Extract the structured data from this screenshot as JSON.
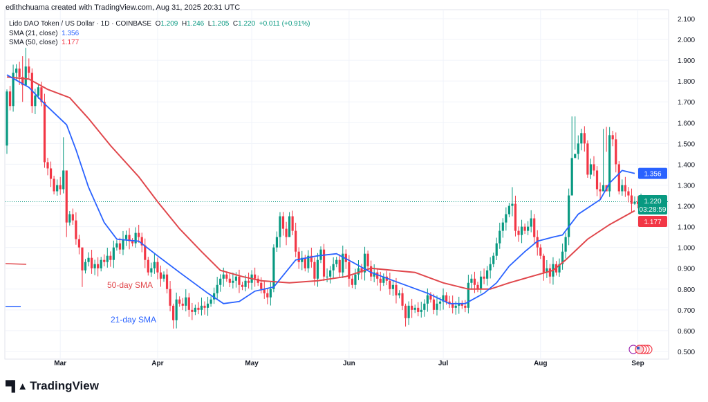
{
  "header": {
    "credit": "edithchuama created with TradingView.com, Aug 31, 2025 20:31 UTC",
    "symbol": "Lido DAO Token / US Dollar · 1D · COINBASE",
    "o_label": "O",
    "o": "1.209",
    "h_label": "H",
    "h": "1.246",
    "l_label": "L",
    "l": "1.205",
    "c_label": "C",
    "c": "1.220",
    "change": "+0.011 (+0.91%)",
    "sma21_label": "SMA (21, close)",
    "sma21_value": "1.356",
    "sma50_label": "SMA (50, close)",
    "sma50_value": "1.177"
  },
  "price_tags": {
    "sma21": "1.356",
    "last": "1.220",
    "countdown": "03:28:59",
    "sma50": "1.177"
  },
  "logo": {
    "text": "TradingView"
  },
  "colors": {
    "up": "#089981",
    "down": "#f23645",
    "sma21": "#2962ff",
    "sma50": "#e0474c",
    "grid": "#f0f3fa"
  },
  "chart_data": {
    "type": "candlestick",
    "title": "Lido DAO Token / US Dollar · 1D · COINBASE",
    "first_date": "2025-02-12",
    "last_date": "2025-08-31",
    "ylim": [
      0.46,
      2.13
    ],
    "y_ticks": [
      "2.100",
      "2.000",
      "1.900",
      "1.800",
      "1.700",
      "1.600",
      "1.500",
      "1.400",
      "1.300",
      "1.200",
      "1.100",
      "1.000",
      "0.900",
      "0.800",
      "0.700",
      "0.600",
      "0.500"
    ],
    "x_ticks": [
      {
        "label": "Mar",
        "day": 17
      },
      {
        "label": "Apr",
        "day": 48
      },
      {
        "label": "May",
        "day": 78
      },
      {
        "label": "Jun",
        "day": 109
      },
      {
        "label": "Jul",
        "day": 139
      },
      {
        "label": "Aug",
        "day": 170
      },
      {
        "label": "Sep",
        "day": 201
      }
    ],
    "first_open": 1.49,
    "closes": [
      1.75,
      1.68,
      1.84,
      1.86,
      1.82,
      1.78,
      1.87,
      1.84,
      1.68,
      1.73,
      1.77,
      1.7,
      1.41,
      1.38,
      1.33,
      1.27,
      1.3,
      1.28,
      1.37,
      1.12,
      1.16,
      1.13,
      1.04,
      1.0,
      0.89,
      0.93,
      0.95,
      0.9,
      0.92,
      0.9,
      0.94,
      0.93,
      0.96,
      0.94,
      1.0,
      1.02,
      0.99,
      1.04,
      1.06,
      1.03,
      1.02,
      1.07,
      1.05,
      1.01,
      0.94,
      0.88,
      0.9,
      0.93,
      0.88,
      0.85,
      0.87,
      0.8,
      0.72,
      0.65,
      0.75,
      0.73,
      0.72,
      0.76,
      0.7,
      0.69,
      0.71,
      0.7,
      0.72,
      0.71,
      0.73,
      0.75,
      0.78,
      0.82,
      0.85,
      0.87,
      0.85,
      0.83,
      0.84,
      0.86,
      0.82,
      0.81,
      0.84,
      0.83,
      0.87,
      0.85,
      0.83,
      0.8,
      0.78,
      0.76,
      0.8,
      1.0,
      1.05,
      1.15,
      1.09,
      1.05,
      1.15,
      1.08,
      0.98,
      0.93,
      0.95,
      0.9,
      0.96,
      0.93,
      0.85,
      0.94,
      0.99,
      0.86,
      0.86,
      0.89,
      0.92,
      0.94,
      0.88,
      0.97,
      0.93,
      0.85,
      0.82,
      0.87,
      0.9,
      0.88,
      0.97,
      0.91,
      0.86,
      0.88,
      0.85,
      0.83,
      0.86,
      0.84,
      0.8,
      0.82,
      0.77,
      0.78,
      0.72,
      0.66,
      0.72,
      0.7,
      0.71,
      0.69,
      0.7,
      0.73,
      0.77,
      0.75,
      0.7,
      0.73,
      0.74,
      0.77,
      0.74,
      0.73,
      0.71,
      0.72,
      0.73,
      0.72,
      0.71,
      0.83,
      0.85,
      0.82,
      0.8,
      0.86,
      0.85,
      0.89,
      0.92,
      0.96,
      1.02,
      1.08,
      1.12,
      1.16,
      1.2,
      1.21,
      1.08,
      1.06,
      1.1,
      1.08,
      1.1,
      1.14,
      1.05,
      1.0,
      0.96,
      0.88,
      0.9,
      0.86,
      0.92,
      0.88,
      0.92,
      0.98,
      1.05,
      1.25,
      1.43,
      1.45,
      1.5,
      1.55,
      1.5,
      1.35,
      1.4,
      1.37,
      1.28,
      1.27,
      1.3,
      1.27,
      1.54,
      1.52,
      1.4,
      1.27,
      1.3,
      1.27,
      1.25,
      1.21,
      1.22,
      1.209,
      1.22
    ],
    "wick_overrides": {
      "0": [
        1.76,
        1.45
      ],
      "6": [
        1.96,
        1.8
      ],
      "5": [
        1.92,
        1.7
      ],
      "18": [
        1.53,
        1.26
      ],
      "19": [
        1.37,
        1.05
      ],
      "24": [
        1.0,
        0.81
      ],
      "53": [
        0.73,
        0.61
      ],
      "87": [
        1.17,
        1.0
      ],
      "90": [
        1.17,
        1.05
      ],
      "127": [
        0.73,
        0.62
      ],
      "161": [
        1.29,
        1.15
      ],
      "171": [
        0.97,
        0.84
      ],
      "180": [
        1.63,
        1.41
      ],
      "181": [
        1.63,
        1.47
      ],
      "190": [
        1.57,
        1.27
      ],
      "191": [
        1.58,
        1.46
      ],
      "200": [
        1.246,
        1.205
      ]
    },
    "series": [
      {
        "name": "SMA (21, close)",
        "points": [
          [
            0,
            1.83
          ],
          [
            7,
            1.77
          ],
          [
            12,
            1.69
          ],
          [
            19,
            1.59
          ],
          [
            22,
            1.47
          ],
          [
            26,
            1.29
          ],
          [
            31,
            1.12
          ],
          [
            35,
            1.04
          ],
          [
            42,
            1.03
          ],
          [
            48,
            0.96
          ],
          [
            55,
            0.88
          ],
          [
            64,
            0.78
          ],
          [
            69,
            0.73
          ],
          [
            74,
            0.74
          ],
          [
            79,
            0.79
          ],
          [
            85,
            0.81
          ],
          [
            92,
            0.94
          ],
          [
            99,
            0.96
          ],
          [
            105,
            0.97
          ],
          [
            110,
            0.93
          ],
          [
            116,
            0.88
          ],
          [
            125,
            0.83
          ],
          [
            134,
            0.78
          ],
          [
            141,
            0.73
          ],
          [
            146,
            0.73
          ],
          [
            152,
            0.78
          ],
          [
            156,
            0.83
          ],
          [
            160,
            0.91
          ],
          [
            165,
            0.98
          ],
          [
            169,
            1.03
          ],
          [
            174,
            1.05
          ],
          [
            177,
            1.06
          ],
          [
            182,
            1.16
          ],
          [
            189,
            1.23
          ],
          [
            192,
            1.31
          ],
          [
            196,
            1.37
          ],
          [
            200,
            1.356
          ]
        ]
      },
      {
        "name": "SMA (50, close)",
        "points": [
          [
            0,
            1.82
          ],
          [
            7,
            1.81
          ],
          [
            13,
            1.76
          ],
          [
            20,
            1.72
          ],
          [
            26,
            1.62
          ],
          [
            33,
            1.49
          ],
          [
            42,
            1.34
          ],
          [
            48,
            1.22
          ],
          [
            55,
            1.09
          ],
          [
            62,
            0.98
          ],
          [
            68,
            0.89
          ],
          [
            75,
            0.86
          ],
          [
            81,
            0.84
          ],
          [
            90,
            0.83
          ],
          [
            99,
            0.84
          ],
          [
            108,
            0.86
          ],
          [
            116,
            0.9
          ],
          [
            123,
            0.89
          ],
          [
            130,
            0.88
          ],
          [
            139,
            0.83
          ],
          [
            147,
            0.8
          ],
          [
            154,
            0.8
          ],
          [
            160,
            0.83
          ],
          [
            167,
            0.86
          ],
          [
            174,
            0.89
          ],
          [
            178,
            0.94
          ],
          [
            185,
            1.04
          ],
          [
            192,
            1.11
          ],
          [
            200,
            1.177
          ]
        ]
      }
    ],
    "annotations": [
      "50-day SMA",
      "21-day SMA"
    ]
  }
}
